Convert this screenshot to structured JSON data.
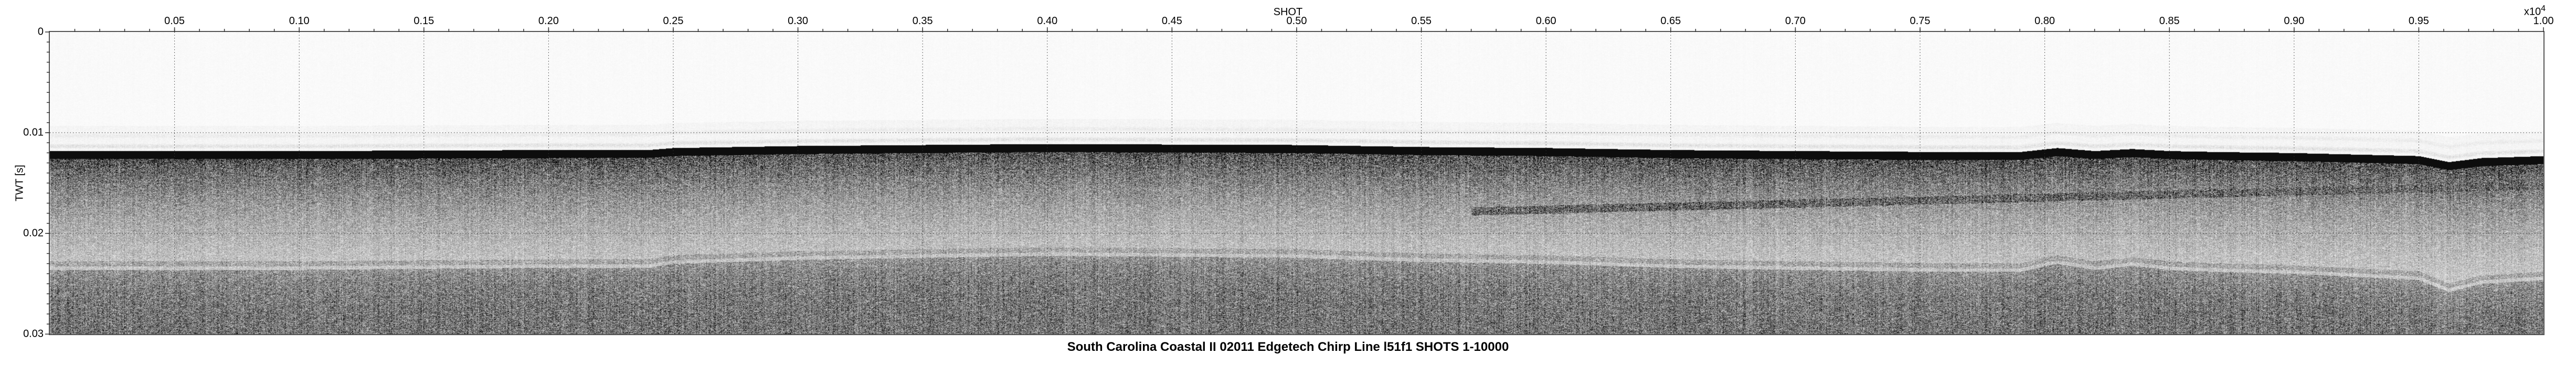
{
  "chart_data": {
    "type": "heatmap",
    "title": "South Carolina Coastal II 02011 Edgetech Chirp Line l51f1 SHOTS 1-10000",
    "xlabel": "SHOT",
    "x_multiplier": "x10",
    "x_multiplier_exp": "4",
    "ylabel": "TWT [s]",
    "xlim": [
      0,
      1.0
    ],
    "ylim": [
      0,
      0.03
    ],
    "y_reversed": true,
    "grid": true,
    "colormap": "grayscale",
    "x_ticks": [
      "0.05",
      "0.10",
      "0.15",
      "0.20",
      "0.25",
      "0.30",
      "0.35",
      "0.40",
      "0.45",
      "0.50",
      "0.55",
      "0.60",
      "0.65",
      "0.70",
      "0.75",
      "0.80",
      "0.85",
      "0.90",
      "0.95",
      "1.00"
    ],
    "y_ticks": [
      "0",
      "0.01",
      "0.02",
      "0.03"
    ],
    "seafloor_twt": {
      "shot": [
        0.0,
        0.1,
        0.2,
        0.24,
        0.25,
        0.3,
        0.4,
        0.5,
        0.55,
        0.6,
        0.65,
        0.7,
        0.76,
        0.79,
        0.805,
        0.82,
        0.835,
        0.85,
        0.87,
        0.9,
        0.95,
        0.962,
        0.975,
        1.0
      ],
      "twt": [
        0.0121,
        0.0121,
        0.012,
        0.012,
        0.0118,
        0.0116,
        0.0114,
        0.0115,
        0.0117,
        0.0118,
        0.012,
        0.0121,
        0.0122,
        0.0122,
        0.0118,
        0.0121,
        0.0119,
        0.0121,
        0.0122,
        0.0123,
        0.0126,
        0.0132,
        0.0128,
        0.0126
      ]
    }
  }
}
